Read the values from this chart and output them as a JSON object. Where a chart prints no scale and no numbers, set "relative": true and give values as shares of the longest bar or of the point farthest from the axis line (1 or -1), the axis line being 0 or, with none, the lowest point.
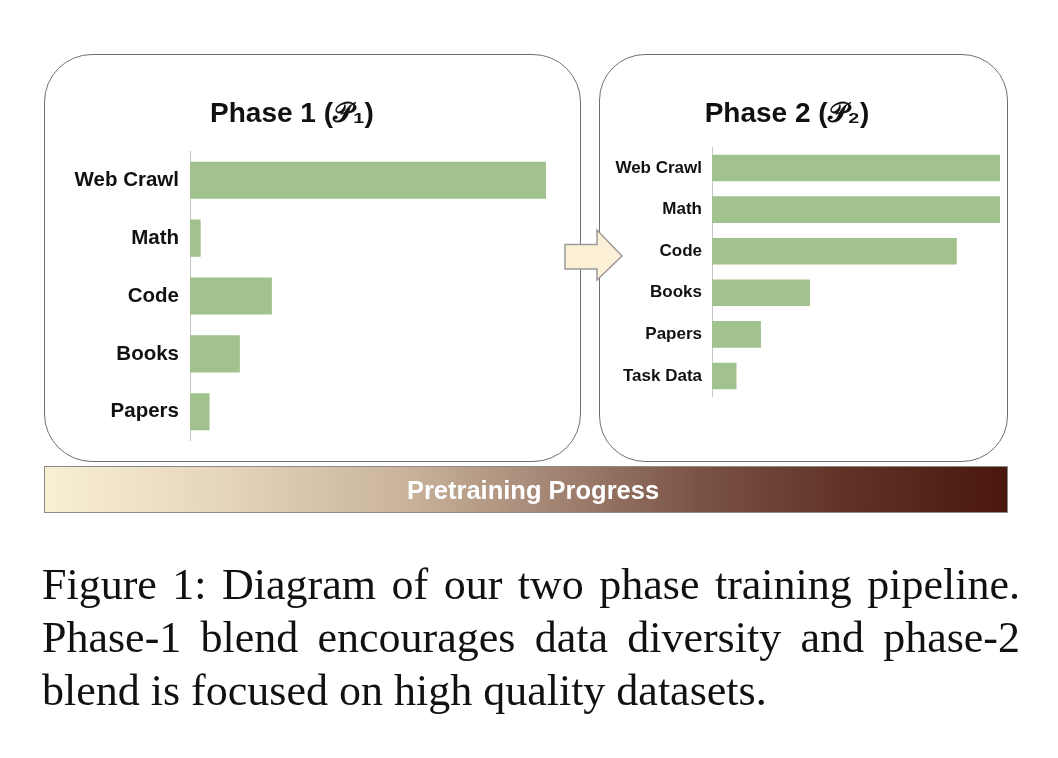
{
  "chart_data": [
    {
      "type": "bar",
      "title": "Phase 1 (𝒫₁)",
      "orientation": "horizontal",
      "relative": true,
      "categories": [
        "Web Crawl",
        "Math",
        "Code",
        "Books",
        "Papers"
      ],
      "values": [
        1,
        0.03,
        0.23,
        0.14,
        0.055
      ],
      "color": "#a2c28d"
    },
    {
      "type": "bar",
      "title": "Phase 2 (𝒫₂)",
      "orientation": "horizontal",
      "relative": true,
      "categories": [
        "Web Crawl",
        "Math",
        "Code",
        "Books",
        "Papers",
        "Task Data"
      ],
      "values": [
        1,
        1,
        0.85,
        0.34,
        0.17,
        0.085
      ],
      "color": "#a2c28d"
    },
    {
      "type": "other",
      "title": "Pretraining Progress",
      "annotations": [
        "Figure 1: Diagram of our two phase training pipeline. Phase-1 blend encourages data diversity and phase-2 blend is focused on high quality datasets."
      ]
    }
  ]
}
